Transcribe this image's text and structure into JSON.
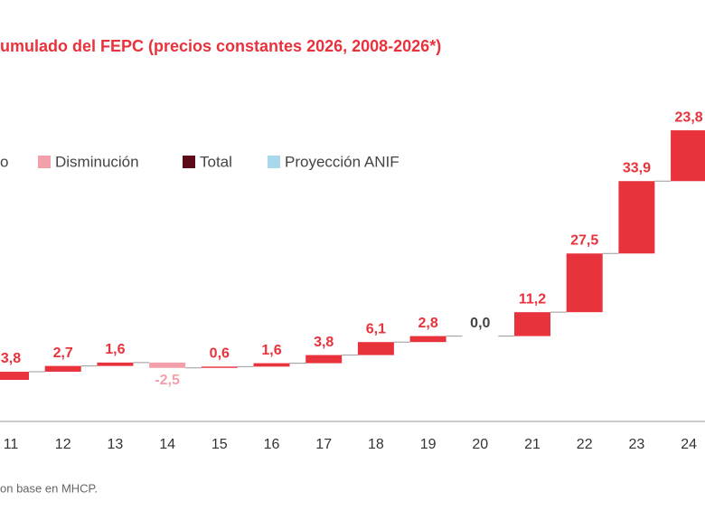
{
  "chart_data": {
    "type": "waterfall",
    "title": "umulado del FEPC (precios constantes 2026, 2008-2026*)",
    "source": "on base en MHCP.",
    "legend": [
      {
        "label": "o",
        "color": "#e8323c"
      },
      {
        "label": "Disminución",
        "color": "#f4a0aa"
      },
      {
        "label": "Total",
        "color": "#5c0a1a"
      },
      {
        "label": "Proyección ANIF",
        "color": "#a9d8ec"
      }
    ],
    "categories": [
      "11",
      "12",
      "13",
      "14",
      "15",
      "16",
      "17",
      "18",
      "19",
      "20",
      "21",
      "22",
      "23",
      "24"
    ],
    "values": [
      3.8,
      2.7,
      1.6,
      -2.5,
      0.6,
      1.6,
      3.8,
      6.1,
      2.8,
      0.0,
      11.2,
      27.5,
      33.9,
      23.8
    ],
    "value_labels": [
      "3,8",
      "2,7",
      "1,6",
      "-2,5",
      "0,6",
      "1,6",
      "3,8",
      "6,1",
      "2,8",
      "0,0",
      "11,2",
      "27,5",
      "33,9",
      "23,8"
    ],
    "increase_color": "#e8323c",
    "decrease_color": "#f4a0aa",
    "zero_label_color": "#444444",
    "ylim": [
      -19.5,
      161
    ]
  }
}
